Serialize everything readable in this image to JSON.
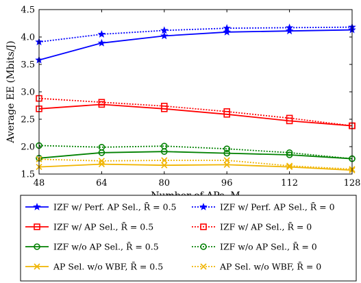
{
  "chart_data": {
    "type": "line",
    "xlabel": "Number of APs, M",
    "ylabel": "Average EE (Mbits/J)",
    "xlim": [
      48,
      128
    ],
    "ylim": [
      1.5,
      4.5
    ],
    "x_ticks": [
      "48",
      "64",
      "80",
      "96",
      "112",
      "128"
    ],
    "y_ticks": [
      "1.5",
      "2.0",
      "2.5",
      "3.0",
      "3.5",
      "4.0",
      "4.5"
    ],
    "x": [
      48,
      64,
      80,
      96,
      112,
      128
    ],
    "grid": false,
    "legend_position": "below",
    "series": [
      {
        "name": "IZF w/ Perf. AP Sel., R̄ = 0.5",
        "color": "#0000ff",
        "dash": "solid",
        "marker": "star",
        "values": [
          3.58,
          3.89,
          4.02,
          4.09,
          4.11,
          4.13
        ]
      },
      {
        "name": "IZF w/ Perf. AP Sel., R̄ = 0",
        "color": "#0000ff",
        "dash": "dotted",
        "marker": "star",
        "values": [
          3.91,
          4.05,
          4.12,
          4.16,
          4.17,
          4.18
        ]
      },
      {
        "name": "IZF w/ AP Sel., R̄ = 0.5",
        "color": "#ff0000",
        "dash": "solid",
        "marker": "square",
        "values": [
          2.69,
          2.77,
          2.69,
          2.59,
          2.47,
          2.38
        ]
      },
      {
        "name": "IZF w/ AP Sel., R̄ = 0",
        "color": "#ff0000",
        "dash": "dotted",
        "marker": "square",
        "values": [
          2.88,
          2.81,
          2.74,
          2.64,
          2.52,
          2.38
        ]
      },
      {
        "name": "IZF w/o AP Sel., R̄ = 0.5",
        "color": "#008000",
        "dash": "solid",
        "marker": "circle",
        "values": [
          1.79,
          1.89,
          1.91,
          1.88,
          1.85,
          1.78
        ]
      },
      {
        "name": "IZF w/o AP Sel., R̄ = 0",
        "color": "#008000",
        "dash": "dotted",
        "marker": "circle",
        "values": [
          2.02,
          1.99,
          2.01,
          1.96,
          1.89,
          1.78
        ]
      },
      {
        "name": "AP Sel. w/o WBF, R̄ = 0.5",
        "color": "#f0b400",
        "dash": "solid",
        "marker": "x",
        "values": [
          1.63,
          1.68,
          1.66,
          1.67,
          1.63,
          1.57
        ]
      },
      {
        "name": "AP Sel. w/o WBF, R̄ = 0",
        "color": "#f0b400",
        "dash": "dotted",
        "marker": "x",
        "values": [
          1.77,
          1.74,
          1.75,
          1.75,
          1.65,
          1.59
        ]
      }
    ]
  }
}
